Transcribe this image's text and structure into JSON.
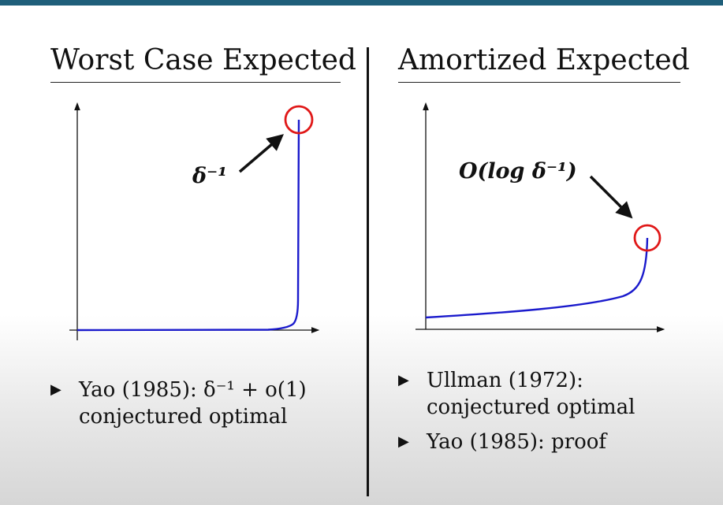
{
  "left": {
    "title": "Worst Case Expected",
    "annotation": "δ⁻¹",
    "bullets": [
      {
        "marker": "▶",
        "lines": [
          "Yao (1985): δ⁻¹ + o(1)",
          "conjectured optimal"
        ]
      }
    ]
  },
  "right": {
    "title": "Amortized Expected",
    "annotation": "O(log δ⁻¹)",
    "bullets": [
      {
        "marker": "▶",
        "lines": [
          "Ullman (1972):",
          "conjectured optimal"
        ]
      },
      {
        "marker": "▶",
        "lines": [
          "Yao (1985): proof"
        ]
      }
    ]
  },
  "colors": {
    "curve": "#1a1acc",
    "highlight": "#e01818",
    "topbar": "#1f5f7a"
  }
}
